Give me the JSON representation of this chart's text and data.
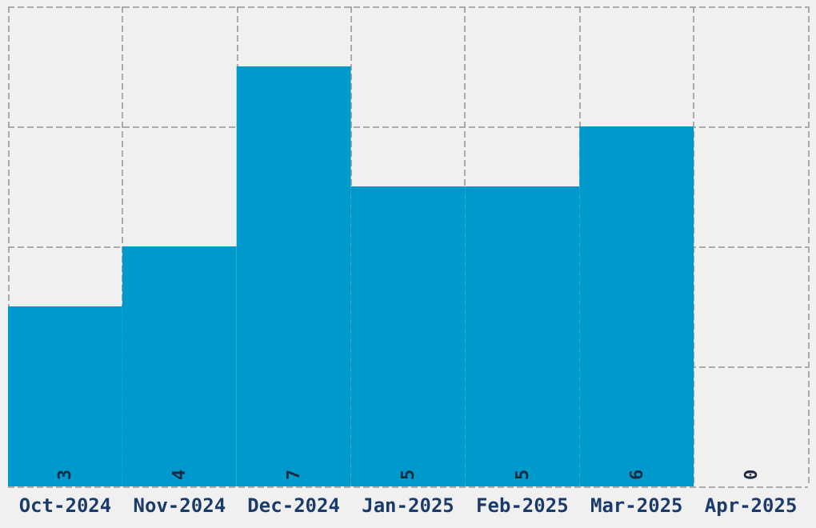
{
  "chart_data": {
    "type": "bar",
    "categories": [
      "Oct-2024",
      "Nov-2024",
      "Dec-2024",
      "Jan-2025",
      "Feb-2025",
      "Mar-2025",
      "Apr-2025"
    ],
    "values": [
      3,
      4,
      7,
      5,
      5,
      6,
      0
    ],
    "color": "#0099cc",
    "data_labels": true,
    "grid": true,
    "tick_labels": "x"
  }
}
